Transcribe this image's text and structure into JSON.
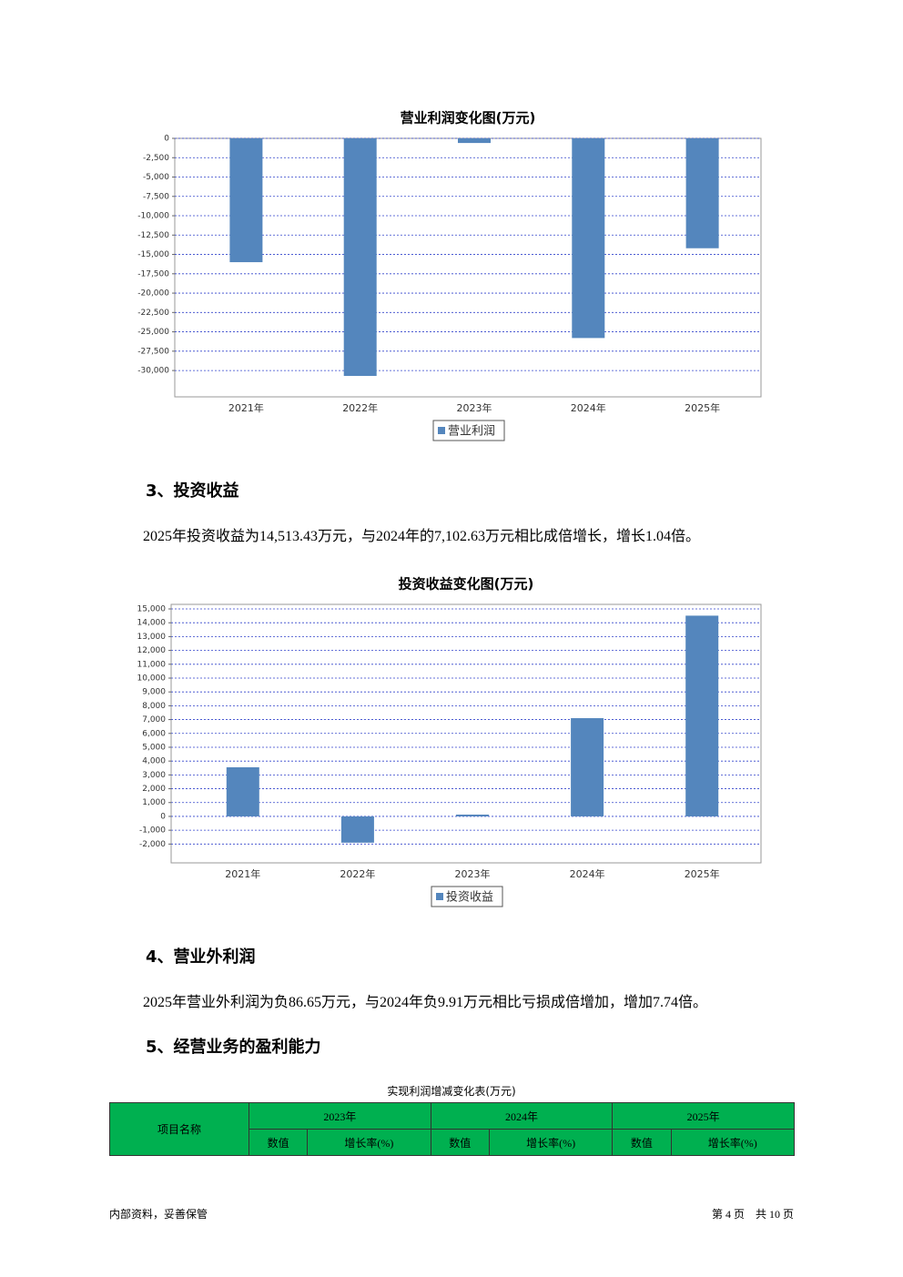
{
  "chart_data": [
    {
      "type": "bar",
      "title": "营业利润变化图(万元)",
      "categories": [
        "2021年",
        "2022年",
        "2023年",
        "2024年",
        "2025年"
      ],
      "series": [
        {
          "name": "营业利润",
          "color": "#5486bd",
          "values": [
            -16000,
            -30700,
            -600,
            -25800,
            -14200
          ]
        }
      ],
      "ylim": [
        -33400,
        0
      ],
      "yticks": [
        0,
        {
          "value": -2500,
          "label": "-2,500"
        },
        {
          "value": -5000,
          "label": "-5,000"
        },
        {
          "value": -7500,
          "label": "-7,500"
        },
        {
          "value": -10000,
          "label": "-10,000"
        },
        {
          "value": -12500,
          "label": "-12,500"
        },
        {
          "value": -15000,
          "label": "-15,000"
        },
        {
          "value": -17500,
          "label": "-17,500"
        },
        {
          "value": -20000,
          "label": "-20,000"
        },
        {
          "value": -22500,
          "label": "-22,500"
        },
        {
          "value": -25000,
          "label": "-25,000"
        },
        {
          "value": -27500,
          "label": "-27,500"
        },
        {
          "value": -30000,
          "label": "-30,000"
        }
      ],
      "grid": true
    },
    {
      "type": "bar",
      "title": "投资收益变化图(万元)",
      "categories": [
        "2021年",
        "2022年",
        "2023年",
        "2024年",
        "2025年"
      ],
      "series": [
        {
          "name": "投资收益",
          "color": "#5486bd",
          "values": [
            3550,
            -1900,
            130,
            7102.63,
            14513.43
          ]
        }
      ],
      "ylim": [
        -3360,
        15330
      ],
      "yticks": [
        {
          "value": 15000,
          "label": "15,000"
        },
        {
          "value": 14000,
          "label": "14,000"
        },
        {
          "value": 13000,
          "label": "13,000"
        },
        {
          "value": 12000,
          "label": "12,000"
        },
        {
          "value": 11000,
          "label": "11,000"
        },
        {
          "value": 10000,
          "label": "10,000"
        },
        {
          "value": 9000,
          "label": "9,000"
        },
        {
          "value": 8000,
          "label": "8,000"
        },
        {
          "value": 7000,
          "label": "7,000"
        },
        {
          "value": 6000,
          "label": "6,000"
        },
        {
          "value": 5000,
          "label": "5,000"
        },
        {
          "value": 4000,
          "label": "4,000"
        },
        {
          "value": 3000,
          "label": "3,000"
        },
        {
          "value": 2000,
          "label": "2,000"
        },
        {
          "value": 1000,
          "label": "1,000"
        },
        0,
        {
          "value": -1000,
          "label": "-1,000"
        },
        {
          "value": -2000,
          "label": "-2,000"
        }
      ],
      "grid": true
    }
  ],
  "sections": [
    {
      "heading": "3、投资收益",
      "text": "2025年投资收益为14,513.43万元，与2024年的7,102.63万元相比成倍增长，增长1.04倍。"
    },
    {
      "heading": "4、营业外利润",
      "text": "2025年营业外利润为负86.65万元，与2024年负9.91万元相比亏损成倍增加，增加7.74倍。"
    },
    {
      "heading": "5、经营业务的盈利能力"
    }
  ],
  "table": {
    "title": "实现利润增减变化表(万元)",
    "header": [
      "项目名称",
      "2023年",
      "2024年",
      "2025年"
    ],
    "subheader": [
      "数值",
      "增长率(%)",
      "数值",
      "增长率(%)",
      "数值",
      "增长率(%)"
    ]
  },
  "footer": {
    "left": "内部资料，妥善保管",
    "right": "第 4 页　共 10 页"
  }
}
